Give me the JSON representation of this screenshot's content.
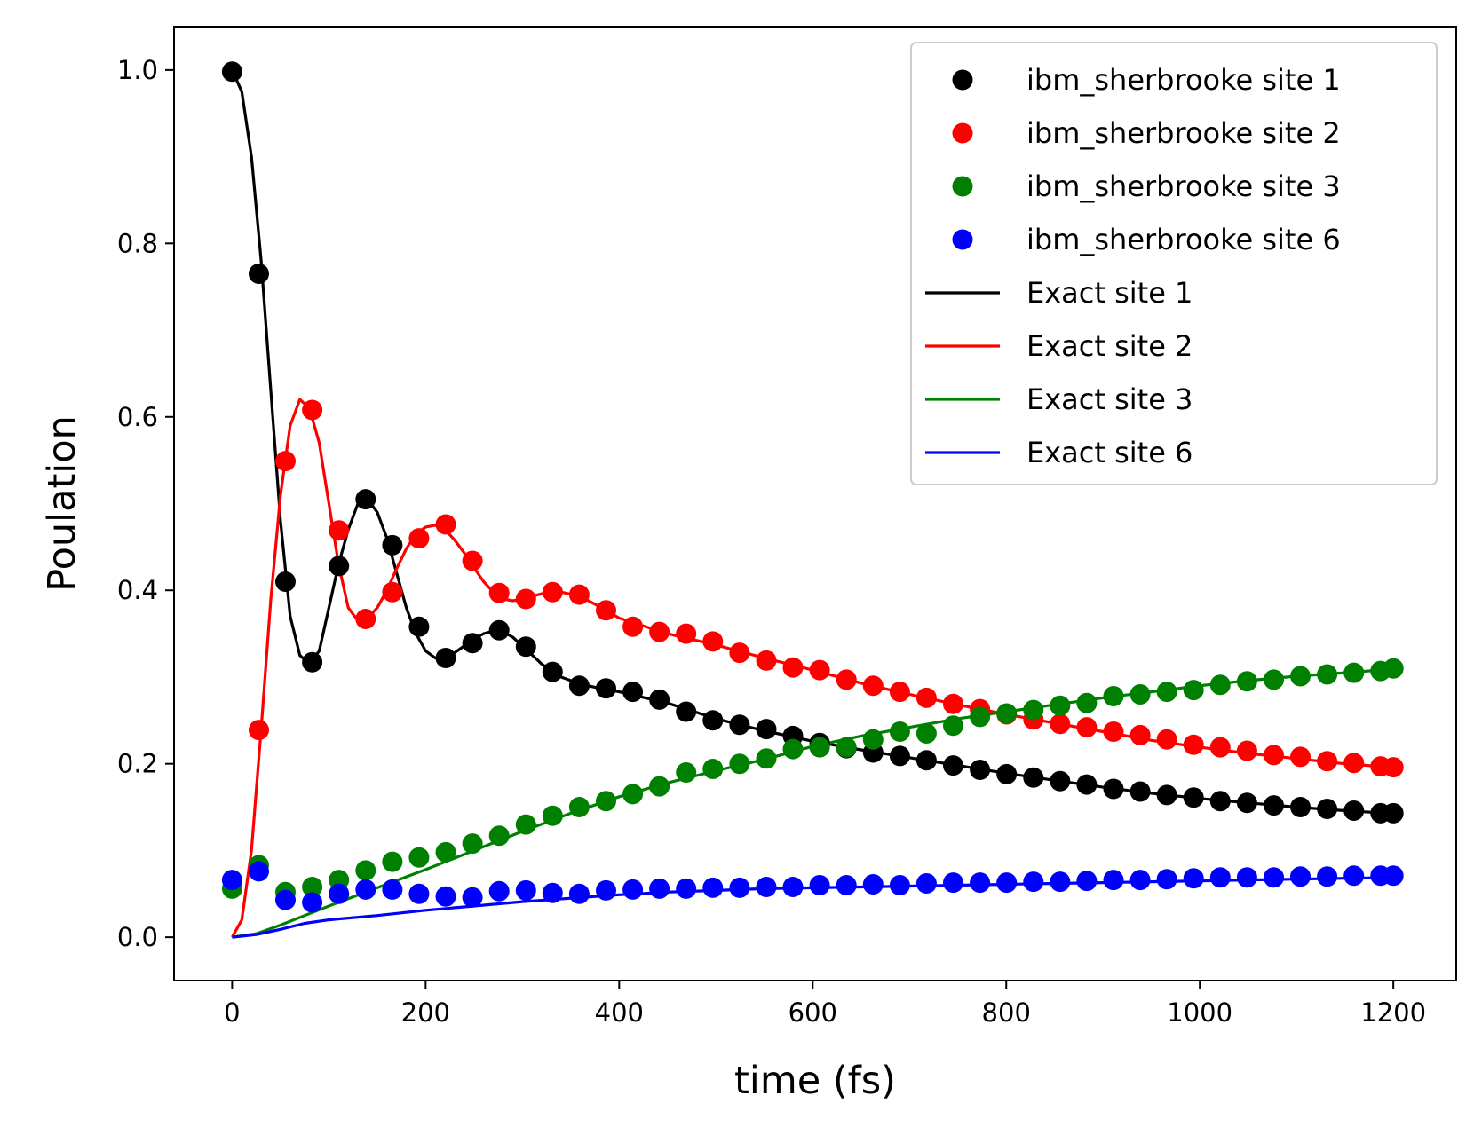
{
  "chart_data": {
    "type": "line",
    "title": "",
    "xlabel": "time (fs)",
    "ylabel": "Poulation",
    "xlim": [
      -60,
      1265
    ],
    "ylim": [
      -0.05,
      1.05
    ],
    "xticks": [
      0,
      200,
      400,
      600,
      800,
      1000,
      1200
    ],
    "xtick_labels": [
      "0",
      "200",
      "400",
      "600",
      "800",
      "1000",
      "1200"
    ],
    "yticks": [
      0.0,
      0.2,
      0.4,
      0.6,
      0.8,
      1.0
    ],
    "ytick_labels": [
      "0.0",
      "0.2",
      "0.4",
      "0.6",
      "0.8",
      "1.0"
    ],
    "grid": false,
    "legend_position": "top-right",
    "x": [
      0,
      27.6,
      55.2,
      82.8,
      110.4,
      138,
      165.6,
      193.2,
      220.8,
      248.4,
      276,
      303.6,
      331.2,
      358.8,
      386.4,
      414,
      441.6,
      469.2,
      496.8,
      524.4,
      552,
      579.6,
      607.2,
      634.8,
      662.4,
      690,
      717.6,
      745.2,
      772.8,
      800.4,
      828,
      855.6,
      883.2,
      910.8,
      938.4,
      966,
      993.6,
      1021.2,
      1048.8,
      1076.4,
      1104,
      1131.6,
      1159.2,
      1186.8,
      1200
    ],
    "series": [
      {
        "name": "ibm_sherbrooke site 1",
        "style": "markers",
        "color": "#000000",
        "values": [
          0.998,
          0.765,
          0.41,
          0.317,
          0.428,
          0.505,
          0.452,
          0.358,
          0.322,
          0.339,
          0.354,
          0.335,
          0.306,
          0.29,
          0.287,
          0.283,
          0.274,
          0.26,
          0.25,
          0.245,
          0.24,
          0.232,
          0.224,
          0.218,
          0.213,
          0.209,
          0.204,
          0.198,
          0.193,
          0.188,
          0.184,
          0.18,
          0.176,
          0.171,
          0.168,
          0.164,
          0.161,
          0.157,
          0.155,
          0.152,
          0.15,
          0.148,
          0.146,
          0.143,
          0.143
        ]
      },
      {
        "name": "ibm_sherbrooke site 2",
        "style": "markers",
        "color": "#ff0000",
        "values": [
          null,
          0.239,
          0.549,
          0.608,
          0.469,
          0.367,
          0.398,
          0.46,
          0.476,
          0.434,
          0.397,
          0.39,
          0.398,
          0.395,
          0.377,
          0.358,
          0.352,
          0.35,
          0.341,
          0.328,
          0.319,
          0.311,
          0.308,
          0.297,
          0.29,
          0.283,
          0.276,
          0.269,
          0.263,
          0.257,
          0.251,
          0.246,
          0.242,
          0.237,
          0.233,
          0.228,
          0.222,
          0.219,
          0.215,
          0.21,
          0.208,
          0.203,
          0.201,
          0.197,
          0.196
        ]
      },
      {
        "name": "ibm_sherbrooke site 3",
        "style": "markers",
        "color": "#008000",
        "values": [
          0.056,
          0.083,
          0.052,
          0.058,
          0.066,
          0.077,
          0.087,
          0.092,
          0.098,
          0.108,
          0.117,
          0.13,
          0.14,
          0.15,
          0.157,
          0.165,
          0.174,
          0.19,
          0.194,
          0.2,
          0.206,
          0.217,
          0.219,
          0.219,
          0.228,
          0.237,
          0.235,
          0.244,
          0.254,
          0.258,
          0.262,
          0.267,
          0.27,
          0.278,
          0.28,
          0.283,
          0.285,
          0.291,
          0.295,
          0.297,
          0.301,
          0.303,
          0.305,
          0.307,
          0.31
        ]
      },
      {
        "name": "ibm_sherbrooke site 6",
        "style": "markers",
        "color": "#0000ff",
        "values": [
          0.066,
          0.076,
          0.043,
          0.04,
          0.05,
          0.055,
          0.055,
          0.05,
          0.047,
          0.046,
          0.053,
          0.054,
          0.051,
          0.05,
          0.054,
          0.055,
          0.056,
          0.056,
          0.057,
          0.057,
          0.058,
          0.058,
          0.06,
          0.06,
          0.061,
          0.06,
          0.062,
          0.063,
          0.063,
          0.063,
          0.064,
          0.064,
          0.065,
          0.066,
          0.066,
          0.067,
          0.068,
          0.069,
          0.069,
          0.069,
          0.07,
          0.07,
          0.071,
          0.071,
          0.071
        ]
      },
      {
        "name": "Exact site 1",
        "style": "line",
        "color": "#000000",
        "x": [
          0,
          10,
          20,
          30,
          40,
          50,
          60,
          70,
          80,
          90,
          100,
          110,
          120,
          130,
          140,
          150,
          160,
          170,
          180,
          190,
          200,
          210,
          220,
          230,
          240,
          250,
          260,
          270,
          280,
          290,
          300,
          320,
          340,
          360,
          380,
          400,
          450,
          500,
          550,
          600,
          650,
          700,
          750,
          800,
          850,
          900,
          950,
          1000,
          1050,
          1100,
          1150,
          1210
        ],
        "values": [
          1.0,
          0.975,
          0.9,
          0.78,
          0.63,
          0.48,
          0.37,
          0.325,
          0.315,
          0.33,
          0.38,
          0.43,
          0.47,
          0.5,
          0.505,
          0.49,
          0.46,
          0.42,
          0.38,
          0.35,
          0.33,
          0.322,
          0.322,
          0.328,
          0.336,
          0.344,
          0.35,
          0.353,
          0.352,
          0.346,
          0.336,
          0.315,
          0.3,
          0.292,
          0.287,
          0.283,
          0.27,
          0.252,
          0.238,
          0.226,
          0.216,
          0.207,
          0.198,
          0.189,
          0.181,
          0.173,
          0.166,
          0.16,
          0.155,
          0.15,
          0.146,
          0.142
        ]
      },
      {
        "name": "Exact site 2",
        "style": "line",
        "color": "#ff0000",
        "x": [
          0,
          10,
          20,
          30,
          40,
          50,
          60,
          70,
          80,
          90,
          100,
          110,
          120,
          130,
          140,
          150,
          160,
          170,
          180,
          190,
          200,
          210,
          220,
          230,
          240,
          250,
          260,
          270,
          280,
          290,
          300,
          320,
          340,
          360,
          380,
          400,
          450,
          500,
          550,
          600,
          650,
          700,
          750,
          800,
          850,
          900,
          950,
          1000,
          1050,
          1100,
          1150,
          1210
        ],
        "values": [
          0.0,
          0.02,
          0.1,
          0.24,
          0.39,
          0.51,
          0.59,
          0.62,
          0.61,
          0.57,
          0.5,
          0.43,
          0.38,
          0.365,
          0.368,
          0.38,
          0.4,
          0.425,
          0.448,
          0.465,
          0.473,
          0.475,
          0.47,
          0.458,
          0.443,
          0.426,
          0.41,
          0.398,
          0.39,
          0.388,
          0.39,
          0.396,
          0.398,
          0.393,
          0.381,
          0.368,
          0.35,
          0.337,
          0.322,
          0.308,
          0.293,
          0.28,
          0.268,
          0.257,
          0.247,
          0.237,
          0.227,
          0.219,
          0.212,
          0.206,
          0.2,
          0.195
        ]
      },
      {
        "name": "Exact site 3",
        "style": "line",
        "color": "#008000",
        "x": [
          0,
          25,
          50,
          75,
          100,
          150,
          200,
          250,
          300,
          350,
          400,
          450,
          500,
          550,
          600,
          650,
          700,
          750,
          800,
          850,
          900,
          950,
          1000,
          1050,
          1100,
          1150,
          1210
        ],
        "values": [
          0.0,
          0.004,
          0.014,
          0.025,
          0.036,
          0.057,
          0.078,
          0.1,
          0.122,
          0.143,
          0.162,
          0.178,
          0.192,
          0.205,
          0.22,
          0.232,
          0.242,
          0.252,
          0.26,
          0.268,
          0.276,
          0.283,
          0.29,
          0.296,
          0.301,
          0.305,
          0.31
        ]
      },
      {
        "name": "Exact site 6",
        "style": "line",
        "color": "#0000ff",
        "x": [
          0,
          25,
          50,
          75,
          100,
          150,
          200,
          250,
          300,
          350,
          400,
          450,
          500,
          550,
          600,
          650,
          700,
          750,
          800,
          850,
          900,
          950,
          1000,
          1050,
          1100,
          1150,
          1210
        ],
        "values": [
          0.0,
          0.003,
          0.009,
          0.016,
          0.02,
          0.025,
          0.031,
          0.036,
          0.041,
          0.045,
          0.049,
          0.052,
          0.054,
          0.056,
          0.057,
          0.058,
          0.059,
          0.06,
          0.061,
          0.062,
          0.063,
          0.064,
          0.065,
          0.066,
          0.067,
          0.068,
          0.069
        ]
      }
    ]
  }
}
